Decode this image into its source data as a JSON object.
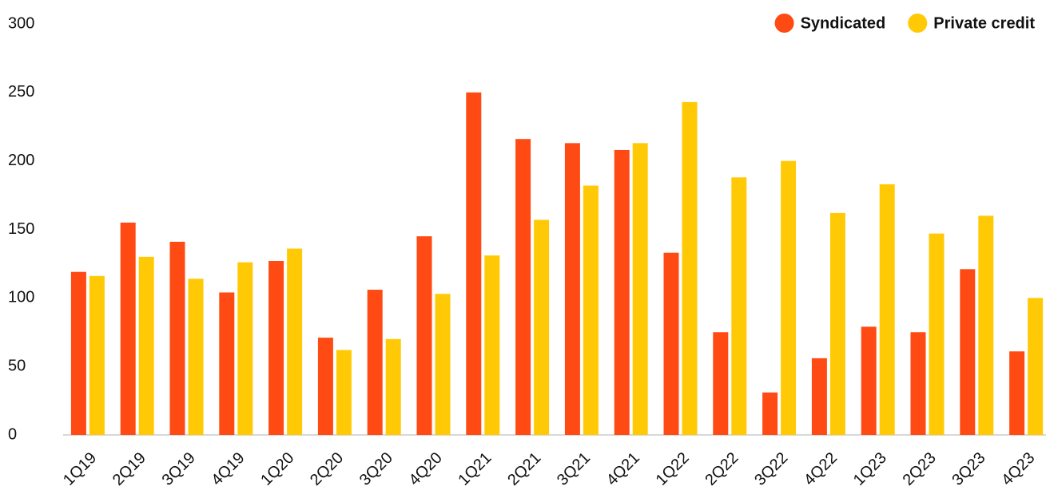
{
  "chart_data": {
    "type": "bar",
    "categories": [
      "1Q19",
      "2Q19",
      "3Q19",
      "4Q19",
      "1Q20",
      "2Q20",
      "3Q20",
      "4Q20",
      "1Q21",
      "2Q21",
      "3Q21",
      "4Q21",
      "1Q22",
      "2Q22",
      "3Q22",
      "4Q22",
      "1Q23",
      "2Q23",
      "3Q23",
      "4Q23"
    ],
    "series": [
      {
        "name": "Syndicated",
        "color": "#ff4a14",
        "values": [
          119,
          155,
          141,
          104,
          127,
          71,
          106,
          145,
          250,
          216,
          213,
          208,
          133,
          75,
          31,
          56,
          79,
          75,
          121,
          61
        ]
      },
      {
        "name": "Private credit",
        "color": "#ffca05",
        "values": [
          116,
          130,
          114,
          126,
          136,
          62,
          70,
          103,
          131,
          157,
          182,
          213,
          243,
          188,
          200,
          162,
          183,
          147,
          160,
          100
        ]
      }
    ],
    "ylim": [
      0,
      300
    ],
    "yticks": [
      0,
      50,
      100,
      150,
      200,
      250,
      300
    ],
    "grid": false,
    "legend": "top-right"
  }
}
